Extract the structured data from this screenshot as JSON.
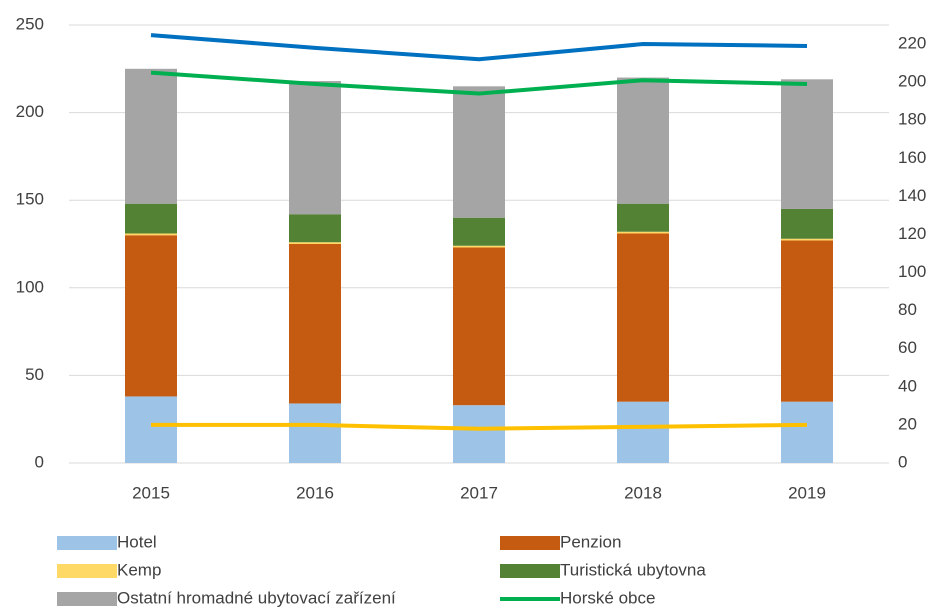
{
  "chart_data": {
    "type": "bar",
    "categories": [
      "2015",
      "2016",
      "2017",
      "2018",
      "2019"
    ],
    "ylim": [
      0,
      250
    ],
    "yticks": [
      0,
      50,
      100,
      150,
      200,
      250
    ],
    "y2lim": [
      0,
      230
    ],
    "y2ticks": [
      0,
      20,
      40,
      60,
      80,
      100,
      120,
      140,
      160,
      180,
      200,
      220
    ],
    "grid": true,
    "legend": "bottom",
    "stacked": true,
    "series": [
      {
        "name": "Hotel",
        "type": "bar",
        "color": "#9dc3e6",
        "values": [
          38,
          34,
          33,
          35,
          35
        ]
      },
      {
        "name": "Penzion",
        "type": "bar",
        "color": "#c55a11",
        "values": [
          92,
          91,
          90,
          96,
          92
        ]
      },
      {
        "name": "Kemp",
        "type": "bar",
        "color": "#ffd966",
        "values": [
          1,
          1,
          1,
          1,
          1
        ]
      },
      {
        "name": "Turistická ubytovna",
        "type": "bar",
        "color": "#548235",
        "values": [
          17,
          16,
          16,
          16,
          17
        ]
      },
      {
        "name": "Ostatní hromadné ubytovací zařízení",
        "type": "bar",
        "color": "#a5a5a5",
        "values": [
          77,
          76,
          75,
          72,
          74
        ]
      },
      {
        "name": "Horské obce",
        "type": "line",
        "axis": "y2",
        "color": "#00b050",
        "values": [
          205,
          199,
          194,
          201,
          199
        ]
      },
      {
        "type": "line",
        "axis": "y2",
        "color": "#0070c0",
        "values": [
          224.7,
          218,
          212,
          220,
          219
        ]
      },
      {
        "type": "line",
        "axis": "y2",
        "color": "#ffc000",
        "values": [
          20,
          20,
          18,
          19,
          20
        ]
      }
    ]
  }
}
